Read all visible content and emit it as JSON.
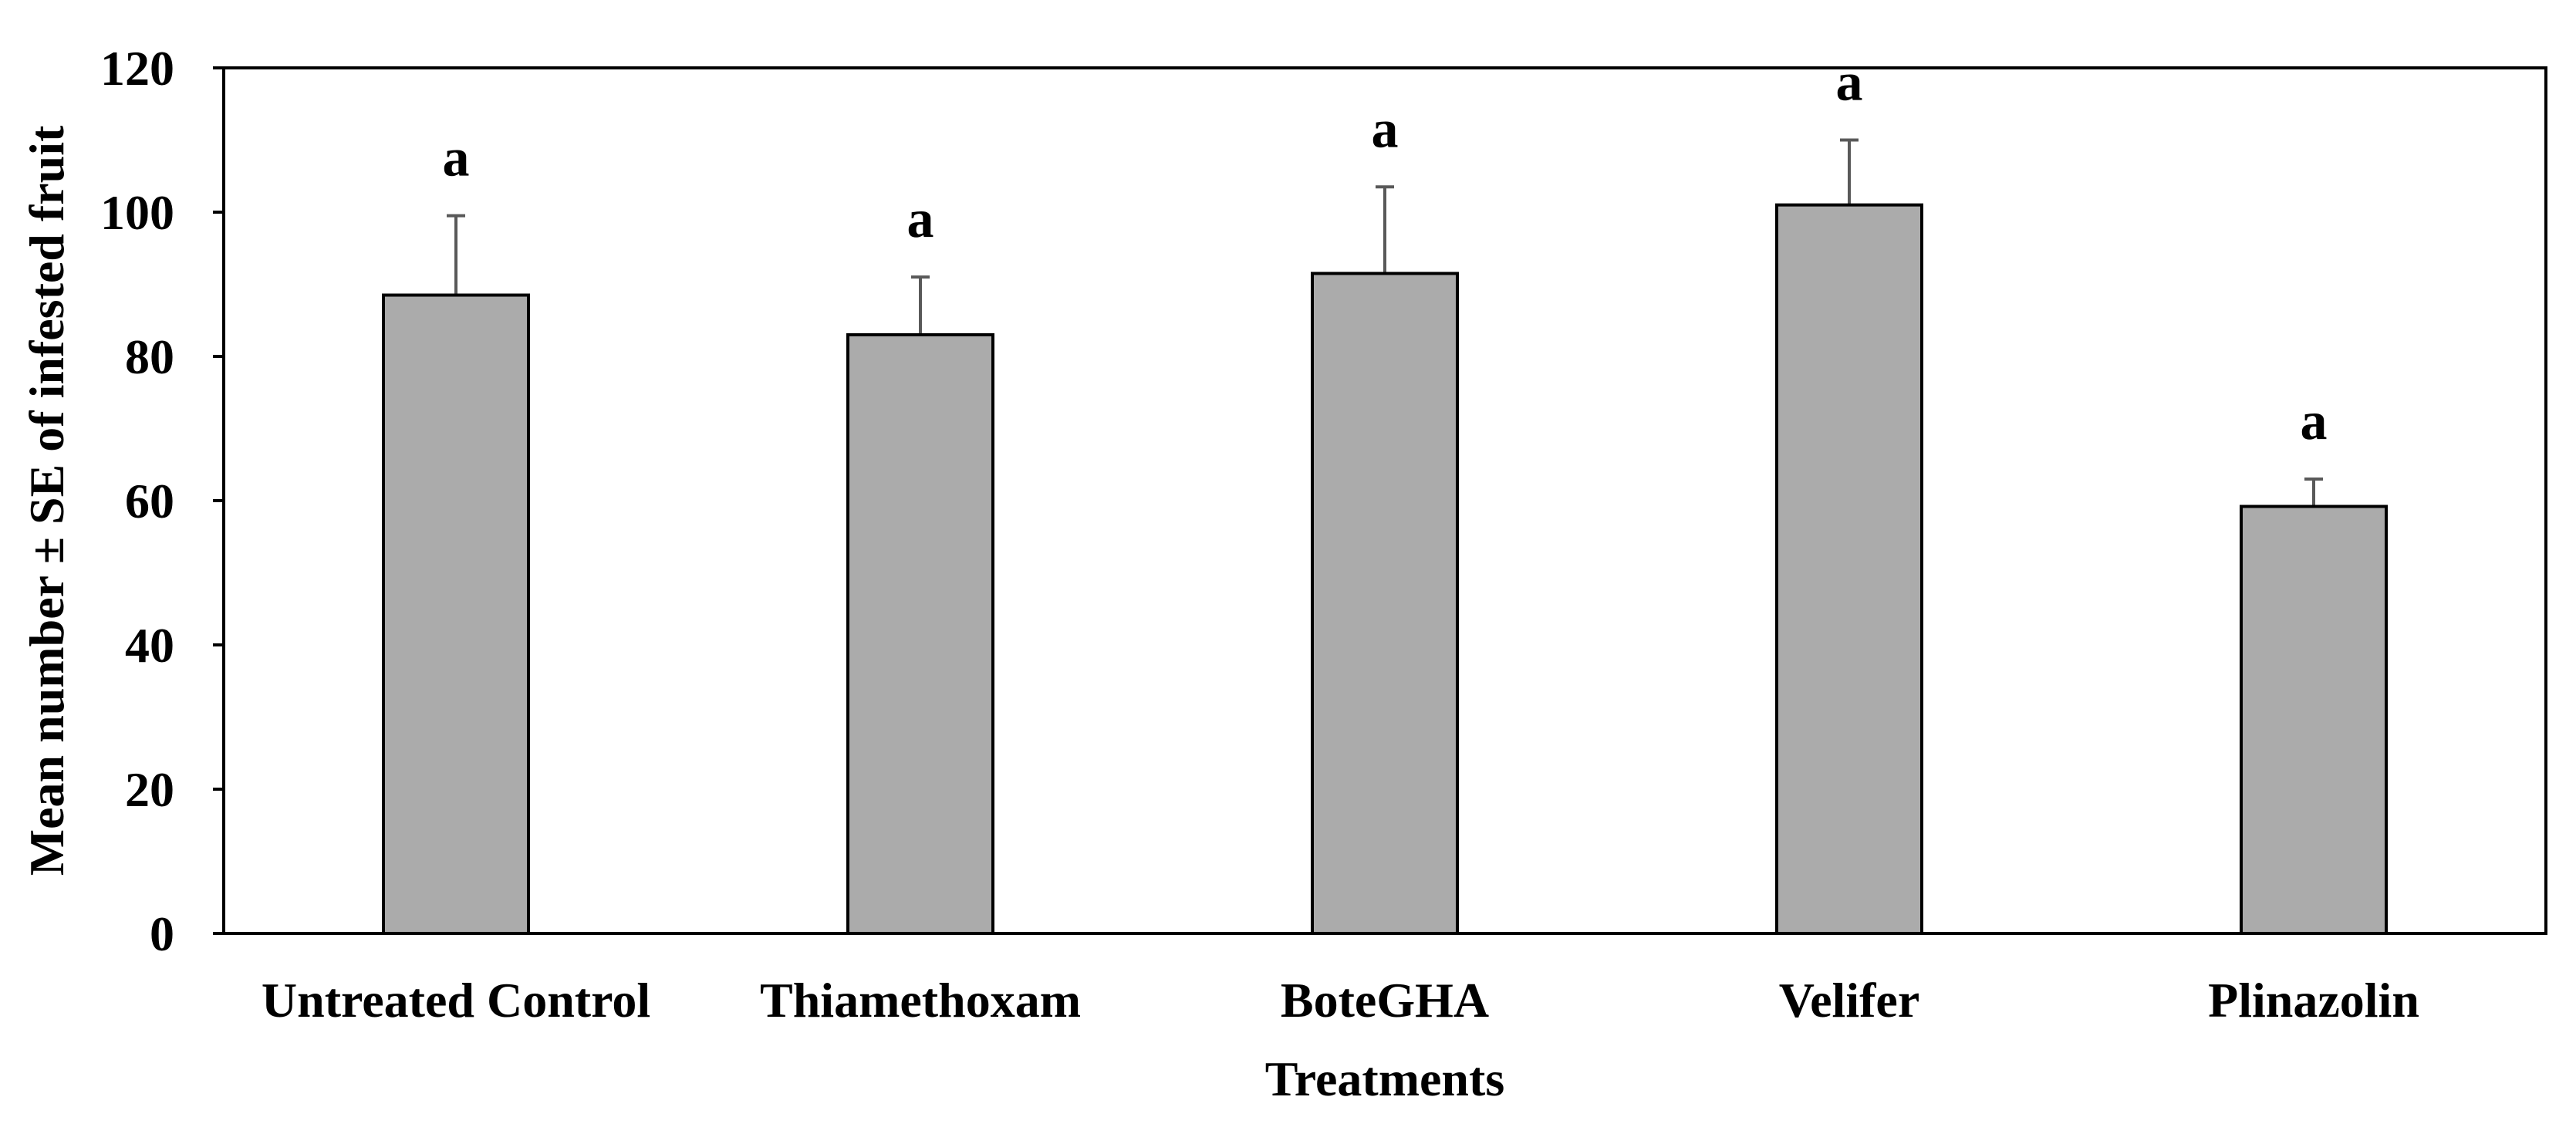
{
  "chart_data": {
    "type": "bar",
    "categories": [
      "Untreated Control",
      "Thiamethoxam",
      "BoteGHA",
      "Velifer",
      "Plinazolin"
    ],
    "values": [
      88.5,
      83,
      91.5,
      101,
      59.2
    ],
    "errors": [
      11,
      8,
      12,
      9,
      3.8
    ],
    "significance": [
      "a",
      "a",
      "a",
      "a",
      "a"
    ],
    "title": "",
    "xlabel": "Treatments",
    "ylabel": "Mean number ± SE of infested fruit",
    "ylim": [
      0,
      120
    ],
    "yticks": [
      0,
      20,
      40,
      60,
      80,
      100,
      120
    ],
    "bar_color": "#ababab",
    "bar_edge_color": "#000000",
    "error_bar_color": "#595959",
    "grid": false
  }
}
